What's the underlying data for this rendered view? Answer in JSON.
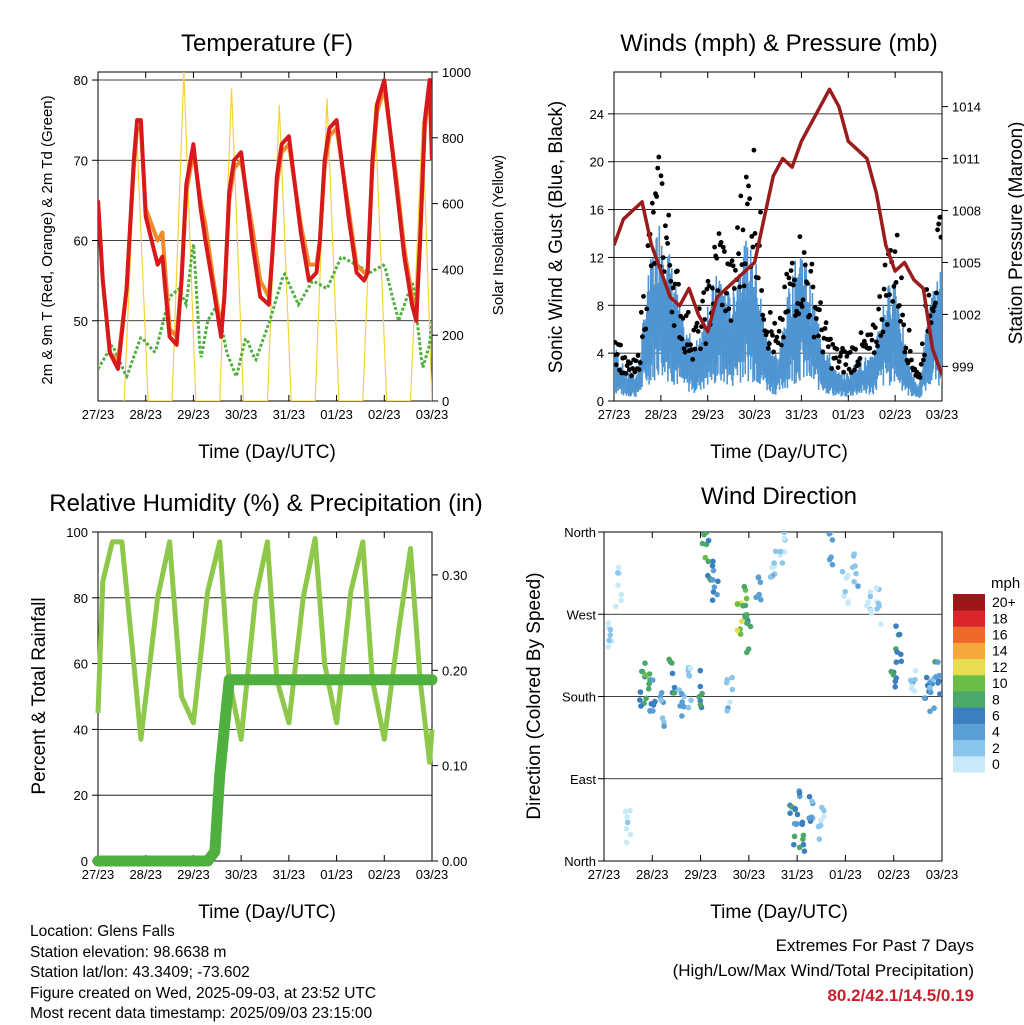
{
  "x_ticks": [
    "27/23",
    "28/23",
    "29/23",
    "30/23",
    "31/23",
    "01/23",
    "02/23",
    "03/23"
  ],
  "x_label": "Time (Day/UTC)",
  "colors": {
    "temp_2m": "#d7191c",
    "temp_9m": "#f08a2a",
    "dewpoint": "#4fb040",
    "solar": "#f5d23a",
    "wind": "#4f95d2",
    "gust": "#000000",
    "pressure": "#9b1c1c",
    "rh": "#8dc84b",
    "precip": "#4fb040",
    "extremes": "#c8202c"
  },
  "temperature": {
    "title": "Temperature (F)",
    "ylabel_left": "2m & 9m T (Red, Orange) & 2m Td (Green)",
    "ylabel_right": "Solar Insolation (Yellow)",
    "left_ticks": [
      "50",
      "60",
      "70",
      "80"
    ],
    "right_ticks": [
      "0",
      "200",
      "400",
      "600",
      "800",
      "1000"
    ]
  },
  "winds": {
    "title": "Winds (mph) & Pressure (mb)",
    "ylabel_left": "Sonic Wind & Gust (Blue, Black)",
    "ylabel_right": "Station Pressure (Maroon)",
    "left_ticks": [
      "0",
      "4",
      "8",
      "12",
      "16",
      "20",
      "24"
    ],
    "right_ticks": [
      "999",
      "1002",
      "1005",
      "1008",
      "1011",
      "1014"
    ]
  },
  "humidity": {
    "title": "Relative Humidity (%) & Precipitation (in)",
    "ylabel_left": "Percent & Total Rainfall",
    "left_ticks": [
      "0",
      "20",
      "40",
      "60",
      "80",
      "100"
    ],
    "right_ticks": [
      "0.00",
      "0.10",
      "0.20",
      "0.30"
    ]
  },
  "direction": {
    "title": "Wind Direction",
    "ylabel_left": "Direction (Colored By Speed)",
    "left_ticks": [
      "North",
      "East",
      "South",
      "West",
      "North"
    ],
    "colorbar": {
      "unit": "mph",
      "labels": [
        "0",
        "2",
        "4",
        "6",
        "8",
        "10",
        "12",
        "14",
        "16",
        "18",
        "20+"
      ],
      "colors": [
        "#c7e9f8",
        "#8ac6ec",
        "#5a9fd4",
        "#3c7fc0",
        "#4aa868",
        "#6cbc48",
        "#e8dc50",
        "#f5a83c",
        "#ee6a2c",
        "#d8262a",
        "#9c1618"
      ]
    }
  },
  "info": {
    "location": "Location: Glens Falls",
    "elevation": "Station elevation: 98.6638 m",
    "latlon": "Station lat/lon: 43.3409; -73.602",
    "created": "Figure created on Wed, 2025-09-03, at 23:52 UTC",
    "recent": "Most recent data timestamp: 2025/09/03 23:15:00"
  },
  "extremes": {
    "title": "Extremes For Past 7 Days",
    "subtitle": "(High/Low/Max Wind/Total Precipitation)",
    "values": "80.2/42.1/14.5/0.19"
  },
  "chart_data": [
    {
      "type": "line",
      "title": "Temperature (F)",
      "xlabel": "Time (Day/UTC)",
      "ylabel": "2m & 9m T (Red, Orange) & 2m Td (Green)",
      "ylabel_right": "Solar Insolation (Yellow)",
      "ylim": [
        40,
        81
      ],
      "ylim_right": [
        0,
        1000
      ],
      "xlim": [
        0,
        7
      ],
      "series": [
        {
          "name": "2m T",
          "axis": "left",
          "x": [
            0,
            0.1,
            0.25,
            0.42,
            0.6,
            0.75,
            0.82,
            0.9,
            1.0,
            1.25,
            1.35,
            1.5,
            1.65,
            1.75,
            1.85,
            2.0,
            2.15,
            2.25,
            2.42,
            2.58,
            2.65,
            2.75,
            2.85,
            3.0,
            3.25,
            3.4,
            3.58,
            3.65,
            3.75,
            3.85,
            4.0,
            4.25,
            4.42,
            4.58,
            4.65,
            4.75,
            4.85,
            5.0,
            5.25,
            5.42,
            5.58,
            5.65,
            5.75,
            5.85,
            6.0,
            6.25,
            6.42,
            6.58,
            6.67,
            6.75,
            6.85,
            6.95,
            7.0
          ],
          "y": [
            65,
            55,
            46,
            44,
            54,
            70,
            75,
            75,
            63,
            57,
            58,
            48,
            47,
            55,
            67,
            72,
            64,
            60,
            54,
            48,
            53,
            66,
            70,
            71,
            59,
            53,
            52,
            58,
            68,
            72,
            73,
            61,
            55,
            56,
            60,
            70,
            74,
            75,
            63,
            56,
            55,
            56,
            70,
            77,
            80,
            67,
            58,
            52,
            50,
            60,
            75,
            80,
            70
          ]
        },
        {
          "name": "9m T",
          "axis": "left",
          "x": [
            0,
            0.1,
            0.25,
            0.42,
            0.6,
            0.75,
            0.82,
            0.9,
            1.0,
            1.25,
            1.35,
            1.5,
            1.65,
            1.75,
            1.85,
            2.0,
            2.15,
            2.25,
            2.42,
            2.58,
            2.65,
            2.75,
            2.85,
            3.0,
            3.25,
            3.4,
            3.58,
            3.65,
            3.75,
            3.85,
            4.0,
            4.25,
            4.42,
            4.58,
            4.65,
            4.75,
            4.85,
            5.0,
            5.25,
            5.42,
            5.58,
            5.65,
            5.75,
            5.85,
            6.0,
            6.25,
            6.42,
            6.58,
            6.67,
            6.75,
            6.85,
            6.95,
            7.0
          ],
          "y": [
            65,
            55,
            46,
            45,
            54,
            69,
            74,
            74,
            64,
            60,
            61,
            49,
            48,
            55,
            66,
            71,
            65,
            62,
            55,
            49,
            53,
            65,
            69,
            70,
            61,
            55,
            53,
            58,
            67,
            71,
            72,
            62,
            57,
            57,
            60,
            69,
            73,
            74,
            64,
            57,
            56,
            56,
            69,
            76,
            79,
            68,
            59,
            53,
            51,
            60,
            74,
            79,
            70
          ]
        },
        {
          "name": "2m Td",
          "axis": "left",
          "x": [
            0,
            0.3,
            0.6,
            0.9,
            1.2,
            1.5,
            1.7,
            1.85,
            2.0,
            2.15,
            2.3,
            2.5,
            2.7,
            2.9,
            3.1,
            3.3,
            3.6,
            3.9,
            4.2,
            4.5,
            4.8,
            5.1,
            5.4,
            5.7,
            6.0,
            6.3,
            6.6,
            6.8,
            6.95,
            7.0
          ],
          "y": [
            44,
            47,
            43,
            48,
            46,
            53,
            54,
            52,
            60,
            45,
            50,
            52,
            46,
            43,
            48,
            45,
            50,
            56,
            52,
            55,
            54,
            58,
            57,
            56,
            57,
            50,
            55,
            44,
            47,
            50
          ]
        },
        {
          "name": "Solar",
          "axis": "right",
          "x": [
            0.55,
            0.8,
            1.05,
            1.55,
            1.8,
            2.05,
            2.55,
            2.8,
            3.05,
            3.55,
            3.8,
            4.05,
            4.55,
            4.8,
            5.05,
            5.55,
            5.8,
            6.05,
            6.55,
            6.8,
            7.0
          ],
          "y": [
            0,
            850,
            0,
            0,
            1000,
            0,
            0,
            950,
            0,
            0,
            900,
            0,
            0,
            920,
            0,
            0,
            900,
            0,
            0,
            850,
            0
          ]
        }
      ]
    },
    {
      "type": "line",
      "title": "Winds (mph) & Pressure (mb)",
      "xlabel": "Time (Day/UTC)",
      "ylabel": "Sonic Wind & Gust (Blue, Black)",
      "ylabel_right": "Station Pressure (Maroon)",
      "ylim": [
        0,
        27.5
      ],
      "ylim_right": [
        997,
        1016
      ],
      "xlim": [
        0,
        7
      ],
      "series": [
        {
          "name": "Wind",
          "axis": "left",
          "x": [
            0,
            0.25,
            0.5,
            0.75,
            1.0,
            1.25,
            1.5,
            1.75,
            2.0,
            2.25,
            2.5,
            2.75,
            3.0,
            3.25,
            3.5,
            3.75,
            4.0,
            4.25,
            4.5,
            4.75,
            5.0,
            5.25,
            5.5,
            5.75,
            6.0,
            6.25,
            6.5,
            6.75,
            7.0
          ],
          "y": [
            4,
            2,
            2,
            9,
            13,
            9,
            5,
            4,
            7,
            9,
            7,
            11,
            10,
            5,
            3,
            8,
            11,
            7,
            4,
            2,
            2,
            3,
            3,
            7,
            9,
            3,
            1,
            7,
            9
          ]
        },
        {
          "name": "Gust",
          "axis": "left",
          "x": [
            0,
            0.25,
            0.5,
            0.75,
            1.0,
            1.25,
            1.5,
            1.75,
            2.0,
            2.25,
            2.5,
            2.75,
            3.0,
            3.25,
            3.5,
            3.75,
            4.0,
            4.25,
            4.5,
            4.75,
            5.0,
            5.25,
            5.5,
            5.75,
            6.0,
            6.25,
            6.5,
            6.75,
            7.0
          ],
          "y": [
            6,
            3,
            3,
            14,
            19,
            12,
            7,
            6,
            9,
            14,
            10,
            17,
            20,
            8,
            5,
            11,
            13,
            10,
            6,
            4,
            4,
            5,
            5,
            10,
            14,
            6,
            2,
            11,
            14
          ]
        },
        {
          "name": "Pressure",
          "axis": "right",
          "x": [
            0,
            0.2,
            0.4,
            0.6,
            0.8,
            1.0,
            1.2,
            1.4,
            1.6,
            1.8,
            2.0,
            2.2,
            2.4,
            2.6,
            2.8,
            3.0,
            3.2,
            3.4,
            3.6,
            3.8,
            4.0,
            4.2,
            4.4,
            4.6,
            4.8,
            5.0,
            5.2,
            5.4,
            5.6,
            5.8,
            6.0,
            6.2,
            6.4,
            6.6,
            6.8,
            7.0
          ],
          "y": [
            1006,
            1007.5,
            1008,
            1008.5,
            1006,
            1004.5,
            1003,
            1002.5,
            1003.5,
            1002,
            1001,
            1003,
            1003.5,
            1004,
            1004.5,
            1005,
            1007.5,
            1010,
            1011,
            1010.5,
            1012,
            1013,
            1014,
            1015,
            1014,
            1012,
            1011.5,
            1011,
            1009,
            1006,
            1004.5,
            1005,
            1004,
            1003.5,
            1000,
            998.5
          ]
        }
      ]
    },
    {
      "type": "line",
      "title": "Relative Humidity (%) & Precipitation (in)",
      "xlabel": "Time (Day/UTC)",
      "ylabel": "Percent & Total Rainfall",
      "ylim": [
        0,
        100
      ],
      "ylim_right": [
        0,
        0.345
      ],
      "xlim": [
        0,
        7
      ],
      "series": [
        {
          "name": "RH",
          "axis": "left",
          "x": [
            0,
            0.1,
            0.3,
            0.5,
            0.75,
            0.9,
            1.25,
            1.5,
            1.75,
            2.0,
            2.3,
            2.55,
            2.75,
            3.0,
            3.3,
            3.55,
            3.75,
            4.0,
            4.3,
            4.55,
            4.75,
            5.0,
            5.3,
            5.55,
            5.75,
            6.0,
            6.3,
            6.55,
            6.75,
            6.95,
            7.0
          ],
          "y": [
            45,
            85,
            97,
            97,
            60,
            37,
            80,
            97,
            50,
            42,
            82,
            97,
            55,
            37,
            80,
            97,
            55,
            42,
            80,
            98,
            60,
            42,
            82,
            97,
            55,
            37,
            70,
            95,
            55,
            30,
            40
          ]
        },
        {
          "name": "Total Rainfall",
          "axis": "right",
          "x": [
            0,
            1.0,
            1.5,
            2.3,
            2.45,
            2.55,
            2.65,
            2.75,
            7.0
          ],
          "y": [
            0,
            0,
            0,
            0,
            0.01,
            0.09,
            0.14,
            0.19,
            0.19
          ]
        }
      ]
    },
    {
      "type": "scatter",
      "title": "Wind Direction",
      "xlabel": "Time (Day/UTC)",
      "ylabel": "Direction (Colored By Speed)",
      "y_categories": [
        "North",
        "East",
        "South",
        "West",
        "North"
      ],
      "ylim": [
        0,
        360
      ],
      "xlim": [
        0,
        7
      ],
      "colorbar": {
        "unit": "mph",
        "levels": [
          0,
          2,
          4,
          6,
          8,
          10,
          12,
          14,
          16,
          18,
          20
        ]
      },
      "series": [
        {
          "name": "Direction",
          "x": [
            0.1,
            0.3,
            0.5,
            0.8,
            0.9,
            1.0,
            1.2,
            1.4,
            1.6,
            1.8,
            2.0,
            2.1,
            2.2,
            2.3,
            2.6,
            2.8,
            2.9,
            3.0,
            3.2,
            3.5,
            3.7,
            3.9,
            4.0,
            4.1,
            4.3,
            4.5,
            4.7,
            5.0,
            5.2,
            5.5,
            5.7,
            6.0,
            6.1,
            6.4,
            6.7,
            6.8,
            6.9
          ],
          "y": [
            250,
            300,
            40,
            190,
            200,
            185,
            170,
            200,
            180,
            190,
            190,
            350,
            330,
            300,
            180,
            260,
            280,
            250,
            300,
            320,
            340,
            40,
            60,
            20,
            50,
            40,
            340,
            300,
            320,
            290,
            280,
            200,
            240,
            190,
            190,
            180,
            200
          ],
          "speed": [
            2,
            1,
            1,
            7,
            9,
            6,
            4,
            8,
            5,
            3,
            8,
            9,
            7,
            6,
            3,
            12,
            10,
            9,
            5,
            3,
            2,
            7,
            6,
            8,
            5,
            3,
            4,
            2,
            3,
            2,
            2,
            7,
            8,
            3,
            6,
            5,
            7
          ]
        }
      ]
    }
  ]
}
